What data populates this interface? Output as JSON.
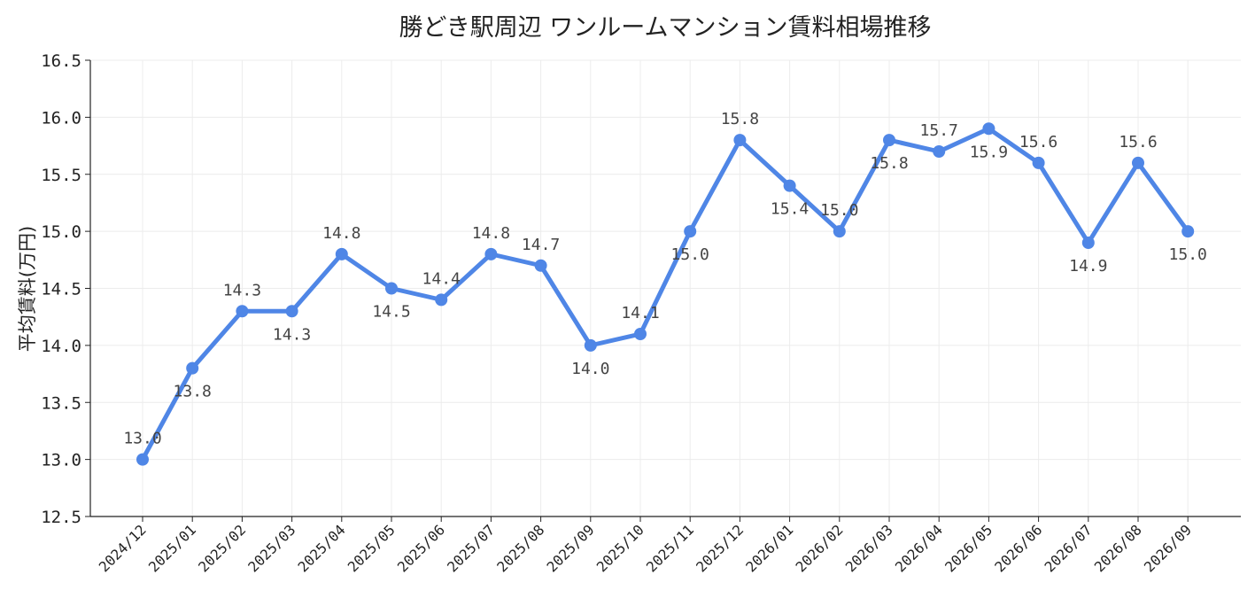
{
  "chart_data": {
    "type": "line",
    "title": "勝どき駅周辺 ワンルームマンション賃料相場推移",
    "xlabel": "",
    "ylabel": "平均賃料(万円)",
    "ylim": [
      12.5,
      16.5
    ],
    "yticks": [
      "12.5",
      "13.0",
      "13.5",
      "14.0",
      "14.5",
      "15.0",
      "15.5",
      "16.0",
      "16.5"
    ],
    "grid": true,
    "legend": "none",
    "color": "#4f86e6",
    "categories": [
      "2024/12",
      "2025/01",
      "2025/02",
      "2025/03",
      "2025/04",
      "2025/05",
      "2025/06",
      "2025/07",
      "2025/08",
      "2025/09",
      "2025/10",
      "2025/11",
      "2025/12",
      "2026/01",
      "2026/02",
      "2026/03",
      "2026/04",
      "2026/05",
      "2026/06",
      "2026/07",
      "2026/08",
      "2026/09"
    ],
    "values": [
      13.0,
      13.8,
      14.3,
      14.3,
      14.8,
      14.5,
      14.4,
      14.8,
      14.7,
      14.0,
      14.1,
      15.0,
      15.8,
      15.4,
      15.0,
      15.8,
      15.7,
      15.9,
      15.6,
      14.9,
      15.6,
      15.0
    ],
    "data_labels": [
      "13.0",
      "13.8",
      "14.3",
      "14.3",
      "14.8",
      "14.5",
      "14.4",
      "14.8",
      "14.7",
      "14.0",
      "14.1",
      "15.0",
      "15.8",
      "15.4",
      "15.0",
      "15.8",
      "15.7",
      "15.9",
      "15.6",
      "14.9",
      "15.6",
      "15.0"
    ],
    "label_position": [
      "above",
      "below",
      "above",
      "below",
      "above",
      "below",
      "above",
      "above",
      "above",
      "below",
      "above",
      "below",
      "above",
      "below",
      "above",
      "below",
      "above",
      "below",
      "above",
      "below",
      "above",
      "below"
    ]
  }
}
